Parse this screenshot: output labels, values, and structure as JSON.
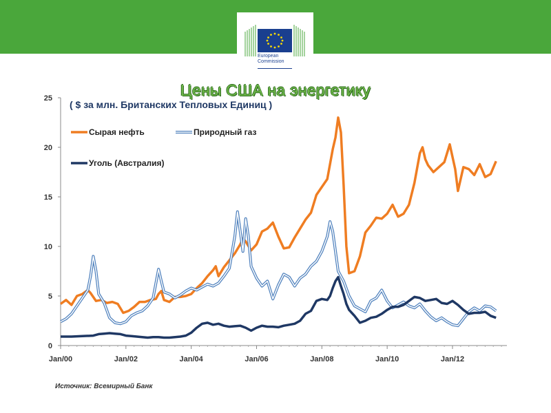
{
  "header": {
    "logo_line1": "European",
    "logo_line2": "Commission"
  },
  "title": "Цены США на энергетику",
  "subtitle": "( $ за млн. Британских Тепловых Единиц )",
  "source": "Источник: Всемирный Банк",
  "chart_data": {
    "type": "line",
    "ylim": [
      0,
      25
    ],
    "yticks": [
      "0",
      "5",
      "10",
      "15",
      "20",
      "25"
    ],
    "xlim": [
      0,
      164
    ],
    "xticks": [
      {
        "month": 0,
        "label": "Jan/00"
      },
      {
        "month": 24,
        "label": "Jan/02"
      },
      {
        "month": 48,
        "label": "Jan/04"
      },
      {
        "month": 72,
        "label": "Jan/06"
      },
      {
        "month": 96,
        "label": "Jan/08"
      },
      {
        "month": 120,
        "label": "Jan/10"
      },
      {
        "month": 144,
        "label": "Jan/12"
      }
    ],
    "x_unit": "months since Jan/00",
    "legend": "top-left",
    "series": [
      {
        "name": "Сырая нефть",
        "color": "#ef7d22",
        "style": "solid",
        "points": [
          [
            0,
            4.2
          ],
          [
            2,
            4.6
          ],
          [
            4,
            4.1
          ],
          [
            6,
            5.0
          ],
          [
            8,
            5.2
          ],
          [
            10,
            5.6
          ],
          [
            11,
            5.3
          ],
          [
            13,
            4.5
          ],
          [
            15,
            4.6
          ],
          [
            17,
            4.3
          ],
          [
            19,
            4.4
          ],
          [
            21,
            4.2
          ],
          [
            23,
            3.3
          ],
          [
            25,
            3.5
          ],
          [
            27,
            3.9
          ],
          [
            29,
            4.4
          ],
          [
            31,
            4.4
          ],
          [
            33,
            4.6
          ],
          [
            35,
            4.7
          ],
          [
            36,
            5.2
          ],
          [
            37,
            5.5
          ],
          [
            38,
            4.6
          ],
          [
            40,
            4.4
          ],
          [
            42,
            4.9
          ],
          [
            44,
            4.9
          ],
          [
            46,
            5.0
          ],
          [
            48,
            5.2
          ],
          [
            50,
            5.8
          ],
          [
            52,
            6.3
          ],
          [
            54,
            7.0
          ],
          [
            56,
            7.6
          ],
          [
            57,
            8.0
          ],
          [
            58,
            7.0
          ],
          [
            60,
            7.9
          ],
          [
            62,
            8.6
          ],
          [
            64,
            9.3
          ],
          [
            66,
            10.2
          ],
          [
            67,
            10.8
          ],
          [
            68,
            10.5
          ],
          [
            70,
            9.6
          ],
          [
            72,
            10.2
          ],
          [
            74,
            11.5
          ],
          [
            76,
            11.8
          ],
          [
            78,
            12.4
          ],
          [
            80,
            11.0
          ],
          [
            82,
            9.8
          ],
          [
            84,
            9.9
          ],
          [
            86,
            10.9
          ],
          [
            88,
            11.8
          ],
          [
            90,
            12.7
          ],
          [
            92,
            13.4
          ],
          [
            94,
            15.2
          ],
          [
            96,
            16.0
          ],
          [
            98,
            16.8
          ],
          [
            100,
            19.8
          ],
          [
            101,
            21.0
          ],
          [
            102,
            23.0
          ],
          [
            103,
            21.5
          ],
          [
            104,
            16.2
          ],
          [
            105,
            10.0
          ],
          [
            106,
            7.3
          ],
          [
            108,
            7.5
          ],
          [
            110,
            9.0
          ],
          [
            112,
            11.4
          ],
          [
            114,
            12.1
          ],
          [
            116,
            12.9
          ],
          [
            118,
            12.8
          ],
          [
            120,
            13.3
          ],
          [
            122,
            14.2
          ],
          [
            124,
            13.0
          ],
          [
            126,
            13.3
          ],
          [
            128,
            14.2
          ],
          [
            130,
            16.4
          ],
          [
            132,
            19.4
          ],
          [
            133,
            20.0
          ],
          [
            134,
            18.8
          ],
          [
            135,
            18.2
          ],
          [
            137,
            17.5
          ],
          [
            139,
            18.0
          ],
          [
            141,
            18.5
          ],
          [
            143,
            20.3
          ],
          [
            145,
            17.8
          ],
          [
            146,
            15.6
          ],
          [
            148,
            18.0
          ],
          [
            150,
            17.8
          ],
          [
            152,
            17.2
          ],
          [
            154,
            18.3
          ],
          [
            156,
            17.0
          ],
          [
            158,
            17.3
          ],
          [
            160,
            18.6
          ]
        ]
      },
      {
        "name": "Природный газ",
        "color": "#4f81bd",
        "style": "double",
        "points": [
          [
            0,
            2.4
          ],
          [
            2,
            2.7
          ],
          [
            4,
            3.2
          ],
          [
            6,
            4.0
          ],
          [
            8,
            4.8
          ],
          [
            10,
            5.6
          ],
          [
            11,
            7.0
          ],
          [
            12,
            9.0
          ],
          [
            13,
            7.5
          ],
          [
            14,
            5.2
          ],
          [
            16,
            4.3
          ],
          [
            18,
            2.8
          ],
          [
            20,
            2.3
          ],
          [
            22,
            2.2
          ],
          [
            24,
            2.4
          ],
          [
            26,
            3.0
          ],
          [
            28,
            3.3
          ],
          [
            30,
            3.5
          ],
          [
            32,
            4.0
          ],
          [
            34,
            4.8
          ],
          [
            36,
            7.7
          ],
          [
            37,
            6.5
          ],
          [
            38,
            5.4
          ],
          [
            40,
            5.2
          ],
          [
            42,
            4.8
          ],
          [
            44,
            5.1
          ],
          [
            46,
            5.5
          ],
          [
            48,
            5.8
          ],
          [
            50,
            5.6
          ],
          [
            52,
            5.9
          ],
          [
            54,
            6.2
          ],
          [
            56,
            6.0
          ],
          [
            58,
            6.3
          ],
          [
            60,
            7.0
          ],
          [
            62,
            7.8
          ],
          [
            64,
            11.0
          ],
          [
            65,
            13.5
          ],
          [
            66,
            11.5
          ],
          [
            67,
            9.5
          ],
          [
            68,
            12.8
          ],
          [
            69,
            11.0
          ],
          [
            70,
            8.0
          ],
          [
            72,
            6.8
          ],
          [
            74,
            6.0
          ],
          [
            76,
            6.5
          ],
          [
            78,
            4.7
          ],
          [
            80,
            6.1
          ],
          [
            82,
            7.2
          ],
          [
            84,
            6.9
          ],
          [
            86,
            6.0
          ],
          [
            88,
            6.8
          ],
          [
            90,
            7.2
          ],
          [
            92,
            8.0
          ],
          [
            94,
            8.5
          ],
          [
            96,
            9.5
          ],
          [
            98,
            11.0
          ],
          [
            99,
            12.5
          ],
          [
            100,
            11.5
          ],
          [
            101,
            9.5
          ],
          [
            102,
            7.5
          ],
          [
            104,
            6.5
          ],
          [
            106,
            5.0
          ],
          [
            108,
            4.0
          ],
          [
            110,
            3.7
          ],
          [
            112,
            3.4
          ],
          [
            114,
            4.5
          ],
          [
            116,
            4.8
          ],
          [
            118,
            5.6
          ],
          [
            120,
            4.5
          ],
          [
            122,
            3.8
          ],
          [
            124,
            4.1
          ],
          [
            126,
            4.4
          ],
          [
            128,
            4.0
          ],
          [
            130,
            3.8
          ],
          [
            132,
            4.2
          ],
          [
            134,
            3.5
          ],
          [
            136,
            2.9
          ],
          [
            138,
            2.5
          ],
          [
            140,
            2.8
          ],
          [
            142,
            2.4
          ],
          [
            144,
            2.1
          ],
          [
            146,
            2.0
          ],
          [
            148,
            2.7
          ],
          [
            150,
            3.4
          ],
          [
            152,
            3.8
          ],
          [
            154,
            3.5
          ],
          [
            156,
            4.0
          ],
          [
            158,
            3.9
          ],
          [
            160,
            3.5
          ]
        ]
      },
      {
        "name": "Уголь (Австралия)",
        "color": "#1f3864",
        "style": "solid",
        "points": [
          [
            0,
            0.9
          ],
          [
            4,
            0.9
          ],
          [
            8,
            0.95
          ],
          [
            12,
            1.0
          ],
          [
            14,
            1.15
          ],
          [
            16,
            1.2
          ],
          [
            18,
            1.25
          ],
          [
            20,
            1.2
          ],
          [
            22,
            1.15
          ],
          [
            24,
            1.0
          ],
          [
            26,
            0.95
          ],
          [
            28,
            0.9
          ],
          [
            30,
            0.85
          ],
          [
            32,
            0.8
          ],
          [
            34,
            0.85
          ],
          [
            36,
            0.85
          ],
          [
            38,
            0.8
          ],
          [
            40,
            0.8
          ],
          [
            42,
            0.85
          ],
          [
            44,
            0.9
          ],
          [
            46,
            1.0
          ],
          [
            48,
            1.3
          ],
          [
            50,
            1.8
          ],
          [
            52,
            2.2
          ],
          [
            54,
            2.3
          ],
          [
            56,
            2.1
          ],
          [
            58,
            2.2
          ],
          [
            60,
            2.0
          ],
          [
            62,
            1.9
          ],
          [
            64,
            1.95
          ],
          [
            66,
            2.0
          ],
          [
            68,
            1.8
          ],
          [
            70,
            1.5
          ],
          [
            72,
            1.8
          ],
          [
            74,
            2.0
          ],
          [
            76,
            1.9
          ],
          [
            78,
            1.9
          ],
          [
            80,
            1.85
          ],
          [
            82,
            2.0
          ],
          [
            84,
            2.1
          ],
          [
            86,
            2.2
          ],
          [
            88,
            2.5
          ],
          [
            90,
            3.2
          ],
          [
            92,
            3.5
          ],
          [
            94,
            4.5
          ],
          [
            96,
            4.7
          ],
          [
            98,
            4.6
          ],
          [
            99,
            5.0
          ],
          [
            100,
            5.8
          ],
          [
            101,
            6.5
          ],
          [
            102,
            6.9
          ],
          [
            103,
            6.0
          ],
          [
            104,
            5.2
          ],
          [
            105,
            4.2
          ],
          [
            106,
            3.6
          ],
          [
            108,
            3.0
          ],
          [
            110,
            2.3
          ],
          [
            112,
            2.5
          ],
          [
            114,
            2.8
          ],
          [
            116,
            2.9
          ],
          [
            118,
            3.2
          ],
          [
            120,
            3.6
          ],
          [
            122,
            3.9
          ],
          [
            124,
            3.9
          ],
          [
            126,
            4.1
          ],
          [
            128,
            4.5
          ],
          [
            130,
            4.9
          ],
          [
            132,
            4.8
          ],
          [
            134,
            4.5
          ],
          [
            136,
            4.6
          ],
          [
            138,
            4.7
          ],
          [
            140,
            4.3
          ],
          [
            142,
            4.2
          ],
          [
            144,
            4.5
          ],
          [
            146,
            4.1
          ],
          [
            148,
            3.6
          ],
          [
            150,
            3.2
          ],
          [
            152,
            3.3
          ],
          [
            154,
            3.3
          ],
          [
            156,
            3.4
          ],
          [
            158,
            3.0
          ],
          [
            160,
            2.8
          ]
        ]
      }
    ]
  }
}
